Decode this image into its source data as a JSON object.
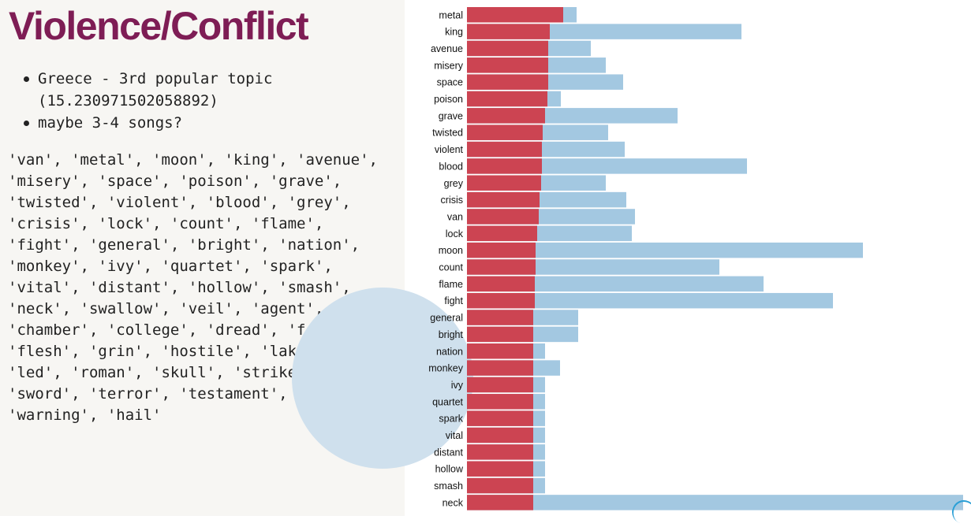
{
  "slide": {
    "title": "Violence/Conflict",
    "bullets": [
      "Greece - 3rd popular topic (15.230971502058892)",
      "maybe 3-4 songs?"
    ],
    "word_list": "'van', 'metal', 'moon', 'king', 'avenue', 'misery', 'space', 'poison', 'grave', 'twisted', 'violent', 'blood', 'grey', 'crisis', 'lock', 'count', 'flame', 'fight', 'general', 'bright', 'nation', 'monkey', 'ivy', 'quartet', 'spark', 'vital', 'distant', 'hollow', 'smash', 'neck', 'swallow', 'veil', 'agent', 'chamber', 'college', 'dread', 'feared', 'flesh', 'grin', 'hostile', 'lake', 'led', 'roman', 'skull', 'strike', 'sword', 'terror', 'testament', 'warning', 'hail'"
  },
  "colors": {
    "title": "#7e1d55",
    "topic_bar": "#cc4452",
    "overall_bar": "#a3c8e1",
    "panel_bg": "#f7f6f3",
    "deco_circle": "#cfe0ed"
  },
  "chart_data": {
    "type": "bar",
    "orientation": "horizontal",
    "stacked_overlay": true,
    "categories": [
      "metal",
      "king",
      "avenue",
      "misery",
      "space",
      "poison",
      "grave",
      "twisted",
      "violent",
      "blood",
      "grey",
      "crisis",
      "van",
      "lock",
      "moon",
      "count",
      "flame",
      "fight",
      "general",
      "bright",
      "nation",
      "monkey",
      "ivy",
      "quartet",
      "spark",
      "vital",
      "distant",
      "hollow",
      "smash",
      "neck"
    ],
    "series": [
      {
        "values": [
          122,
          105,
          103,
          103,
          103,
          102,
          99,
          96,
          95,
          95,
          94,
          92,
          91,
          89,
          87,
          87,
          86,
          86,
          84,
          84,
          84,
          84,
          84,
          84,
          84,
          84,
          84,
          84,
          84,
          84
        ]
      },
      {
        "values": [
          139,
          348,
          157,
          176,
          198,
          119,
          267,
          179,
          200,
          355,
          176,
          202,
          213,
          209,
          502,
          320,
          376,
          464,
          141,
          141,
          99,
          118,
          99,
          99,
          99,
          99,
          99,
          99,
          99,
          629
        ]
      }
    ],
    "title": "",
    "xlabel": "",
    "ylabel": "",
    "xlim": [
      0,
      629
    ],
    "grid": false,
    "legend": "none"
  }
}
